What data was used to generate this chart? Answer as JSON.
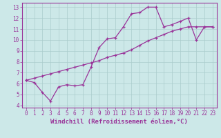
{
  "xlabel": "Windchill (Refroidissement éolien,°C)",
  "background_color": "#cce8e8",
  "grid_color": "#aacccc",
  "line_color": "#993399",
  "spine_color": "#993399",
  "xlim": [
    -0.5,
    23.5
  ],
  "ylim": [
    3.8,
    13.4
  ],
  "xticks": [
    0,
    1,
    2,
    3,
    4,
    5,
    6,
    7,
    8,
    9,
    10,
    11,
    12,
    13,
    14,
    15,
    16,
    17,
    18,
    19,
    20,
    21,
    22,
    23
  ],
  "yticks": [
    4,
    5,
    6,
    7,
    8,
    9,
    10,
    11,
    12,
    13
  ],
  "line1_x": [
    0,
    1,
    2,
    3,
    4,
    5,
    6,
    7,
    8,
    9,
    10,
    11,
    12,
    13,
    14,
    15,
    16,
    17,
    18,
    19,
    20,
    21,
    22,
    23
  ],
  "line1_y": [
    6.3,
    6.1,
    5.2,
    4.4,
    5.7,
    5.9,
    5.8,
    5.9,
    7.5,
    9.3,
    10.1,
    10.2,
    11.2,
    12.4,
    12.5,
    13.0,
    13.0,
    11.2,
    11.4,
    11.7,
    12.0,
    10.0,
    11.2,
    11.2
  ],
  "line2_x": [
    0,
    1,
    2,
    3,
    4,
    5,
    6,
    7,
    8,
    9,
    10,
    11,
    12,
    13,
    14,
    15,
    16,
    17,
    18,
    19,
    20,
    21,
    22,
    23
  ],
  "line2_y": [
    6.3,
    6.5,
    6.7,
    6.9,
    7.1,
    7.3,
    7.5,
    7.7,
    7.9,
    8.1,
    8.4,
    8.6,
    8.8,
    9.1,
    9.5,
    9.9,
    10.2,
    10.5,
    10.8,
    11.0,
    11.2,
    11.2,
    11.2,
    11.2
  ],
  "tick_fontsize": 5.5,
  "xlabel_fontsize": 6.5
}
